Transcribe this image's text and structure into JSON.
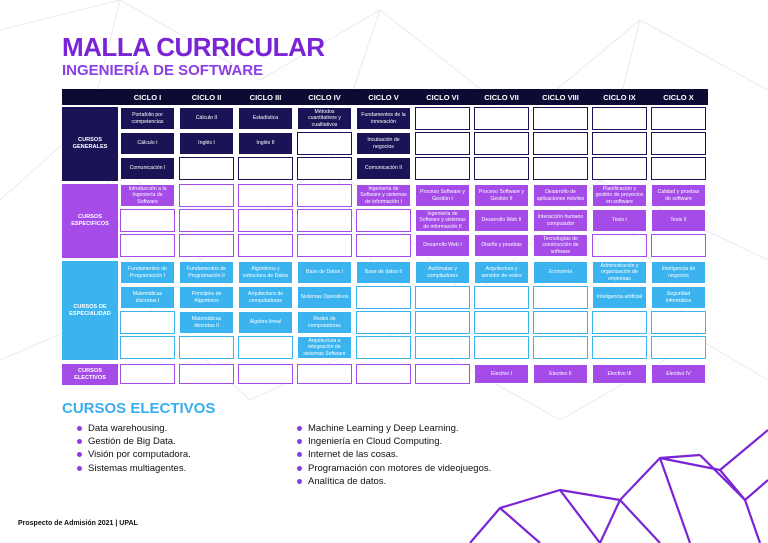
{
  "header": {
    "title": "MALLA CURRICULAR",
    "subtitle": "INGENIERÍA DE SOFTWARE"
  },
  "colors": {
    "title": "#7b24d6",
    "generales": "#1a1457",
    "especificos": "#a44be8",
    "especialidad": "#3bb3ee",
    "electivos": "#a44be8",
    "header_bar": "#0b0b33"
  },
  "grid": {
    "cycles": [
      "CICLO I",
      "CICLO II",
      "CICLO III",
      "CICLO IV",
      "CICLO V",
      "CICLO VI",
      "CICLO VII",
      "CICLO VIII",
      "CICLO IX",
      "CICLO X"
    ],
    "sections": [
      {
        "label": "CURSOS GENERALES",
        "kind": "gen",
        "rows": [
          [
            "Portafolio por competencias",
            "Cálculo II",
            "Estadística",
            "Métodos cuantitativos y cualitativos",
            "Fundamentos de la innovación",
            "",
            "",
            "",
            "",
            ""
          ],
          [
            "Cálculo I",
            "Inglés I",
            "Inglés II",
            "",
            "Incubación de negocios",
            "",
            "",
            "",
            "",
            ""
          ],
          [
            "Comunicación I",
            "",
            "",
            "",
            "Comunicación II",
            "",
            "",
            "",
            "",
            ""
          ]
        ]
      },
      {
        "label": "CURSOS ESPECIFICOS",
        "kind": "esp",
        "rows": [
          [
            "Introducción a la Ingeniería de Software",
            "",
            "",
            "",
            "Ingeniería de Software y sistemas de información I",
            "Proceso Software y Gestión I",
            "Proceso Software y Gestión II",
            "Desarrollo de aplicaciones móviles",
            "Planificación y gestión de proyectos en software",
            "Calidad y pruebas de software"
          ],
          [
            "",
            "",
            "",
            "",
            "",
            "Ingeniería de Software y sistemas de información II",
            "Desarrollo Web II",
            "Interacción humano computador",
            "Tesis I",
            "Tesis II"
          ],
          [
            "",
            "",
            "",
            "",
            "",
            "Desarrollo Web I",
            "Diseño y pruebas",
            "Tecnologías de construcción de software",
            "",
            ""
          ]
        ]
      },
      {
        "label": "CURSOS DE ESPECIALIDAD",
        "kind": "spe",
        "rows": [
          [
            "Fundamentos de Programación I",
            "Fundamentos de Programación II",
            "Algoritmos y estructura de Datos",
            "Base de Datos I",
            "Base de datos II",
            "Autómatas y compiladores",
            "Arquitectura y servidor de redes",
            "Economía",
            "Administración y organización de empresas",
            "Inteligencia de negocios"
          ],
          [
            "Matemáticas discretas I",
            "Principios de Algoritmos",
            "Arquitectura de computadoras",
            "Sistemas Operativos",
            "",
            "",
            "",
            "",
            "Inteligencia artificial",
            "Seguridad informática"
          ],
          [
            "",
            "Matemáticas discretas II",
            "Álgebra lineal",
            "Redes de computadoras",
            "",
            "",
            "",
            "",
            "",
            ""
          ],
          [
            "",
            "",
            "",
            "Arquitectura e integración de sistemas Software",
            "",
            "",
            "",
            "",
            "",
            ""
          ]
        ]
      },
      {
        "label": "CURSOS ELECTIVOS",
        "kind": "ele",
        "rows": [
          [
            "",
            "",
            "",
            "",
            "",
            "",
            "Electivo I",
            "Electivo II",
            "Electivo III",
            "Electivo IV"
          ]
        ]
      }
    ]
  },
  "electivos": {
    "title": "CURSOS ELECTIVOS",
    "left": [
      "Data warehousing.",
      "Gestión de Big Data.",
      "Visión por computadora.",
      "Sistemas multiagentes."
    ],
    "right": [
      "Machine Learning y Deep Learning.",
      "Ingeniería en Cloud Computing.",
      "Internet de las cosas.",
      "Programación con motores de videojuegos.",
      "Analítica de datos."
    ]
  },
  "footer": {
    "text": "Prospecto de Admisión 2021 | UPAL"
  }
}
